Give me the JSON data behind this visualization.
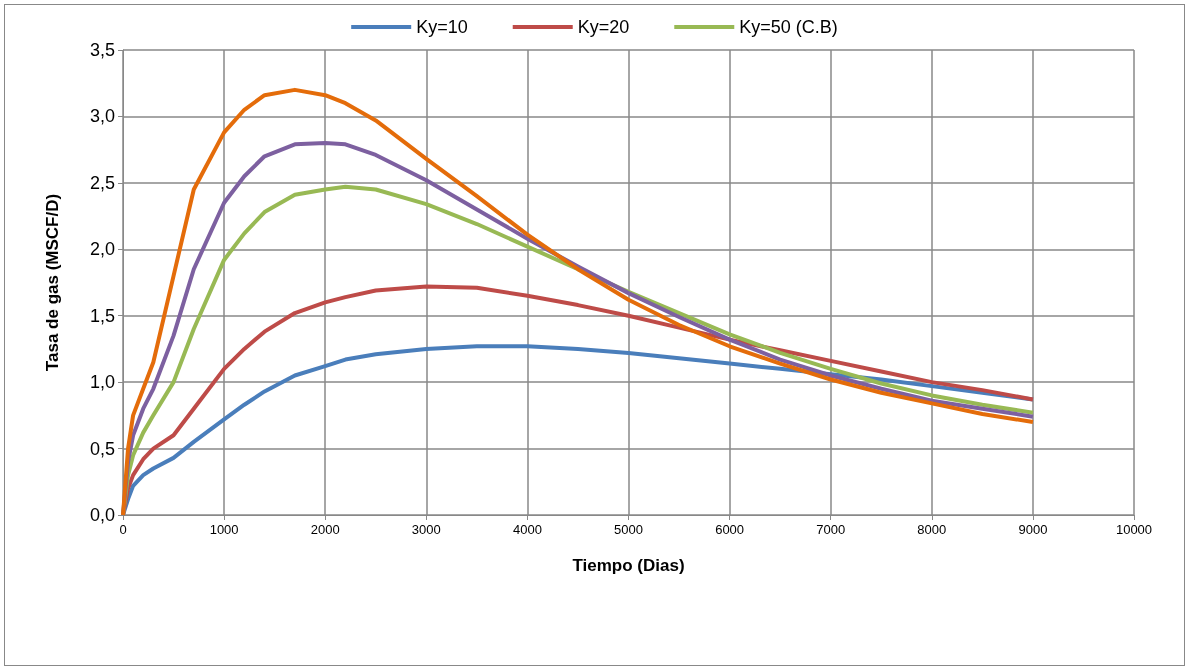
{
  "chart_data": {
    "type": "line",
    "xlabel": "Tiempo (Dias)",
    "ylabel": "Tasa de gas (MSCF/D)",
    "x": [
      0,
      50,
      100,
      200,
      300,
      500,
      700,
      1000,
      1200,
      1400,
      1700,
      2000,
      2200,
      2500,
      3000,
      3500,
      4000,
      4500,
      5000,
      5500,
      6000,
      6500,
      7000,
      7500,
      8000,
      8500,
      9000
    ],
    "series": [
      {
        "name": "Ky=10",
        "color": "#4a7ebb",
        "values": [
          0,
          0.12,
          0.22,
          0.3,
          0.35,
          0.43,
          0.55,
          0.72,
          0.83,
          0.93,
          1.05,
          1.12,
          1.17,
          1.21,
          1.25,
          1.27,
          1.27,
          1.25,
          1.22,
          1.18,
          1.14,
          1.1,
          1.06,
          1.02,
          0.97,
          0.92,
          0.87
        ]
      },
      {
        "name": "Ky=20",
        "color": "#be4b48",
        "values": [
          0,
          0.2,
          0.3,
          0.42,
          0.5,
          0.6,
          0.8,
          1.1,
          1.25,
          1.38,
          1.52,
          1.6,
          1.64,
          1.69,
          1.72,
          1.71,
          1.65,
          1.58,
          1.5,
          1.41,
          1.32,
          1.24,
          1.16,
          1.08,
          1.0,
          0.94,
          0.87
        ]
      },
      {
        "name": "Ky=50 (C.B)",
        "color": "#98b954",
        "values": [
          0,
          0.3,
          0.45,
          0.62,
          0.75,
          1.0,
          1.4,
          1.92,
          2.12,
          2.28,
          2.41,
          2.45,
          2.47,
          2.45,
          2.34,
          2.19,
          2.02,
          1.85,
          1.68,
          1.52,
          1.36,
          1.22,
          1.1,
          0.99,
          0.9,
          0.83,
          0.77
        ]
      },
      {
        "color": "#7d60a0",
        "values": [
          0,
          0.4,
          0.6,
          0.8,
          0.95,
          1.35,
          1.85,
          2.35,
          2.55,
          2.7,
          2.79,
          2.8,
          2.79,
          2.71,
          2.52,
          2.3,
          2.08,
          1.87,
          1.67,
          1.49,
          1.32,
          1.17,
          1.05,
          0.95,
          0.86,
          0.8,
          0.74
        ]
      },
      {
        "color": "#e46c0a",
        "values": [
          0,
          0.5,
          0.75,
          0.95,
          1.15,
          1.8,
          2.45,
          2.88,
          3.05,
          3.16,
          3.2,
          3.16,
          3.1,
          2.97,
          2.68,
          2.4,
          2.11,
          1.85,
          1.62,
          1.43,
          1.27,
          1.14,
          1.02,
          0.92,
          0.84,
          0.76,
          0.7
        ]
      }
    ],
    "xlim": [
      0,
      10000
    ],
    "xticks": [
      0,
      1000,
      2000,
      3000,
      4000,
      5000,
      6000,
      7000,
      8000,
      9000,
      10000
    ],
    "ylim": [
      0,
      3.5
    ],
    "yticks": [
      {
        "value": 0,
        "label": "0,0"
      },
      {
        "value": 0.5,
        "label": "0,5"
      },
      {
        "value": 1,
        "label": "1,0"
      },
      {
        "value": 1.5,
        "label": "1,5"
      },
      {
        "value": 2,
        "label": "2,0"
      },
      {
        "value": 2.5,
        "label": "2,5"
      },
      {
        "value": 3,
        "label": "3,0"
      },
      {
        "value": 3.5,
        "label": "3,5"
      }
    ],
    "grid": true,
    "legend": "top",
    "marker": "none",
    "line_style": "solid"
  }
}
